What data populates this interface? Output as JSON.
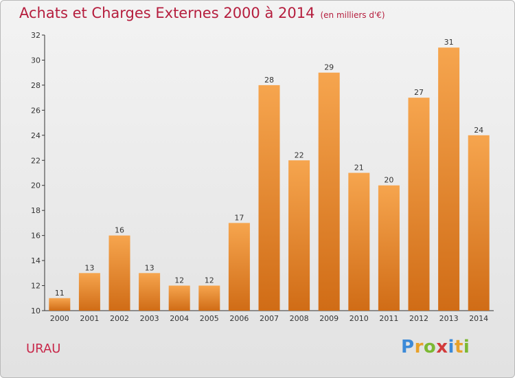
{
  "title": "Achats et Charges Externes 2000 à 2014",
  "unit_note": "(en milliers d'€)",
  "commune": "URAU",
  "logo": {
    "text": "Proxiti",
    "colors": [
      "#3c8ad8",
      "#e8a12a",
      "#7cb833",
      "#d23b3b",
      "#3c8ad8",
      "#e8a12a",
      "#7cb833"
    ]
  },
  "colors": {
    "bar_top": "#f6a54e",
    "bar_bottom": "#d06c16",
    "title": "#b51d3d",
    "axis": "#333333"
  },
  "chart_data": {
    "type": "bar",
    "categories": [
      "2000",
      "2001",
      "2002",
      "2003",
      "2004",
      "2005",
      "2006",
      "2007",
      "2008",
      "2009",
      "2010",
      "2011",
      "2012",
      "2013",
      "2014"
    ],
    "values": [
      11,
      13,
      16,
      13,
      12,
      12,
      17,
      28,
      22,
      29,
      21,
      20,
      27,
      31,
      24
    ],
    "ylim": [
      10,
      32
    ],
    "yticks": [
      10,
      12,
      14,
      16,
      18,
      20,
      22,
      24,
      26,
      28,
      30,
      32
    ],
    "title": "Achats et Charges Externes 2000 à 2014",
    "xlabel": "",
    "ylabel": "",
    "grid": false,
    "legend": false
  }
}
